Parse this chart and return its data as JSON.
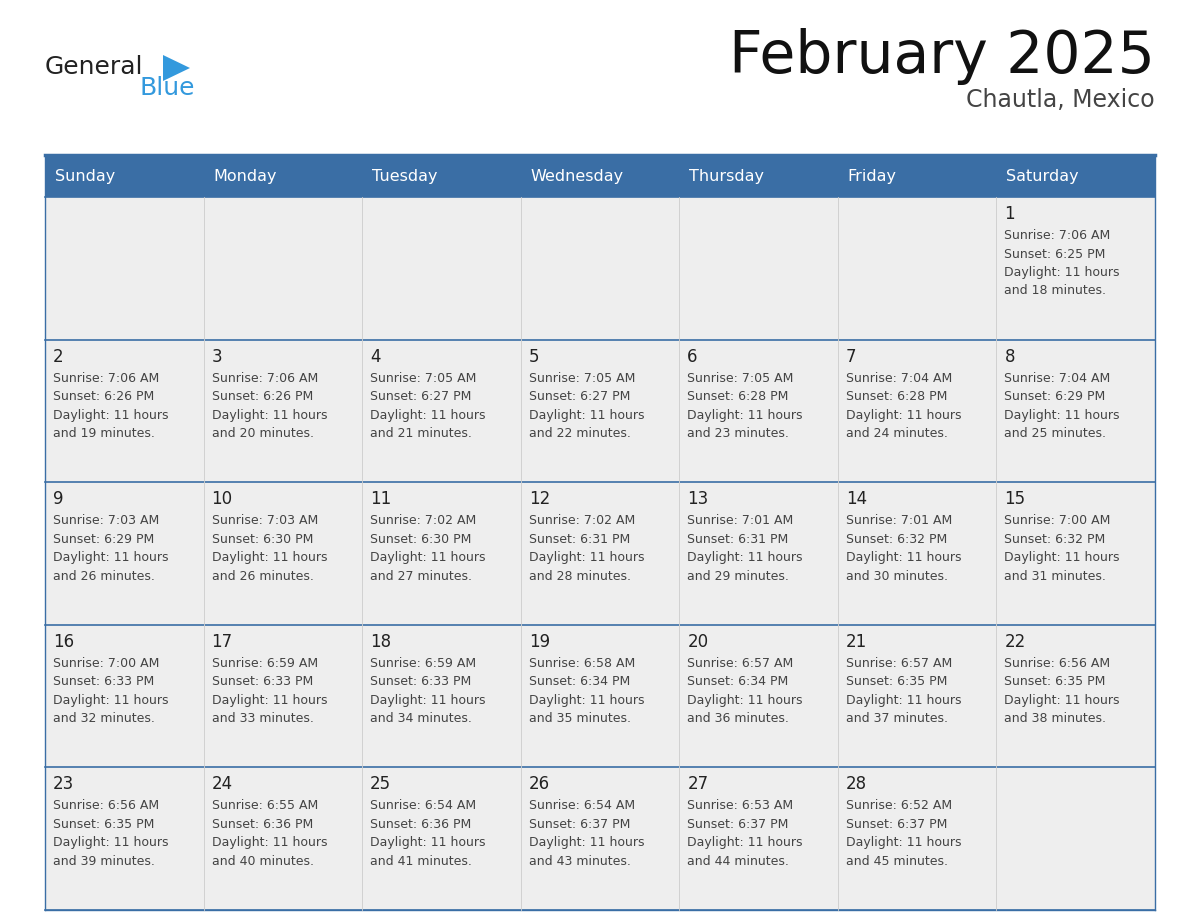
{
  "title": "February 2025",
  "subtitle": "Chautla, Mexico",
  "days_of_week": [
    "Sunday",
    "Monday",
    "Tuesday",
    "Wednesday",
    "Thursday",
    "Friday",
    "Saturday"
  ],
  "header_bg": "#3a6ea5",
  "header_text": "#ffffff",
  "cell_bg_light": "#eeeeee",
  "cell_bg_white": "#ffffff",
  "day_number_color": "#222222",
  "text_color": "#444444",
  "row_border_color": "#3a6ea5",
  "col_border_color": "#cccccc",
  "logo_general_color": "#222222",
  "logo_blue_color": "#3399dd",
  "logo_triangle_color": "#3399dd",
  "calendar_data": [
    [
      {
        "day": null
      },
      {
        "day": null
      },
      {
        "day": null
      },
      {
        "day": null
      },
      {
        "day": null
      },
      {
        "day": null
      },
      {
        "day": 1,
        "sunrise": "7:06 AM",
        "sunset": "6:25 PM",
        "daylight": "11 hours",
        "daylight2": "and 18 minutes."
      }
    ],
    [
      {
        "day": 2,
        "sunrise": "7:06 AM",
        "sunset": "6:26 PM",
        "daylight": "11 hours",
        "daylight2": "and 19 minutes."
      },
      {
        "day": 3,
        "sunrise": "7:06 AM",
        "sunset": "6:26 PM",
        "daylight": "11 hours",
        "daylight2": "and 20 minutes."
      },
      {
        "day": 4,
        "sunrise": "7:05 AM",
        "sunset": "6:27 PM",
        "daylight": "11 hours",
        "daylight2": "and 21 minutes."
      },
      {
        "day": 5,
        "sunrise": "7:05 AM",
        "sunset": "6:27 PM",
        "daylight": "11 hours",
        "daylight2": "and 22 minutes."
      },
      {
        "day": 6,
        "sunrise": "7:05 AM",
        "sunset": "6:28 PM",
        "daylight": "11 hours",
        "daylight2": "and 23 minutes."
      },
      {
        "day": 7,
        "sunrise": "7:04 AM",
        "sunset": "6:28 PM",
        "daylight": "11 hours",
        "daylight2": "and 24 minutes."
      },
      {
        "day": 8,
        "sunrise": "7:04 AM",
        "sunset": "6:29 PM",
        "daylight": "11 hours",
        "daylight2": "and 25 minutes."
      }
    ],
    [
      {
        "day": 9,
        "sunrise": "7:03 AM",
        "sunset": "6:29 PM",
        "daylight": "11 hours",
        "daylight2": "and 26 minutes."
      },
      {
        "day": 10,
        "sunrise": "7:03 AM",
        "sunset": "6:30 PM",
        "daylight": "11 hours",
        "daylight2": "and 26 minutes."
      },
      {
        "day": 11,
        "sunrise": "7:02 AM",
        "sunset": "6:30 PM",
        "daylight": "11 hours",
        "daylight2": "and 27 minutes."
      },
      {
        "day": 12,
        "sunrise": "7:02 AM",
        "sunset": "6:31 PM",
        "daylight": "11 hours",
        "daylight2": "and 28 minutes."
      },
      {
        "day": 13,
        "sunrise": "7:01 AM",
        "sunset": "6:31 PM",
        "daylight": "11 hours",
        "daylight2": "and 29 minutes."
      },
      {
        "day": 14,
        "sunrise": "7:01 AM",
        "sunset": "6:32 PM",
        "daylight": "11 hours",
        "daylight2": "and 30 minutes."
      },
      {
        "day": 15,
        "sunrise": "7:00 AM",
        "sunset": "6:32 PM",
        "daylight": "11 hours",
        "daylight2": "and 31 minutes."
      }
    ],
    [
      {
        "day": 16,
        "sunrise": "7:00 AM",
        "sunset": "6:33 PM",
        "daylight": "11 hours",
        "daylight2": "and 32 minutes."
      },
      {
        "day": 17,
        "sunrise": "6:59 AM",
        "sunset": "6:33 PM",
        "daylight": "11 hours",
        "daylight2": "and 33 minutes."
      },
      {
        "day": 18,
        "sunrise": "6:59 AM",
        "sunset": "6:33 PM",
        "daylight": "11 hours",
        "daylight2": "and 34 minutes."
      },
      {
        "day": 19,
        "sunrise": "6:58 AM",
        "sunset": "6:34 PM",
        "daylight": "11 hours",
        "daylight2": "and 35 minutes."
      },
      {
        "day": 20,
        "sunrise": "6:57 AM",
        "sunset": "6:34 PM",
        "daylight": "11 hours",
        "daylight2": "and 36 minutes."
      },
      {
        "day": 21,
        "sunrise": "6:57 AM",
        "sunset": "6:35 PM",
        "daylight": "11 hours",
        "daylight2": "and 37 minutes."
      },
      {
        "day": 22,
        "sunrise": "6:56 AM",
        "sunset": "6:35 PM",
        "daylight": "11 hours",
        "daylight2": "and 38 minutes."
      }
    ],
    [
      {
        "day": 23,
        "sunrise": "6:56 AM",
        "sunset": "6:35 PM",
        "daylight": "11 hours",
        "daylight2": "and 39 minutes."
      },
      {
        "day": 24,
        "sunrise": "6:55 AM",
        "sunset": "6:36 PM",
        "daylight": "11 hours",
        "daylight2": "and 40 minutes."
      },
      {
        "day": 25,
        "sunrise": "6:54 AM",
        "sunset": "6:36 PM",
        "daylight": "11 hours",
        "daylight2": "and 41 minutes."
      },
      {
        "day": 26,
        "sunrise": "6:54 AM",
        "sunset": "6:37 PM",
        "daylight": "11 hours",
        "daylight2": "and 43 minutes."
      },
      {
        "day": 27,
        "sunrise": "6:53 AM",
        "sunset": "6:37 PM",
        "daylight": "11 hours",
        "daylight2": "and 44 minutes."
      },
      {
        "day": 28,
        "sunrise": "6:52 AM",
        "sunset": "6:37 PM",
        "daylight": "11 hours",
        "daylight2": "and 45 minutes."
      },
      {
        "day": null
      }
    ]
  ]
}
